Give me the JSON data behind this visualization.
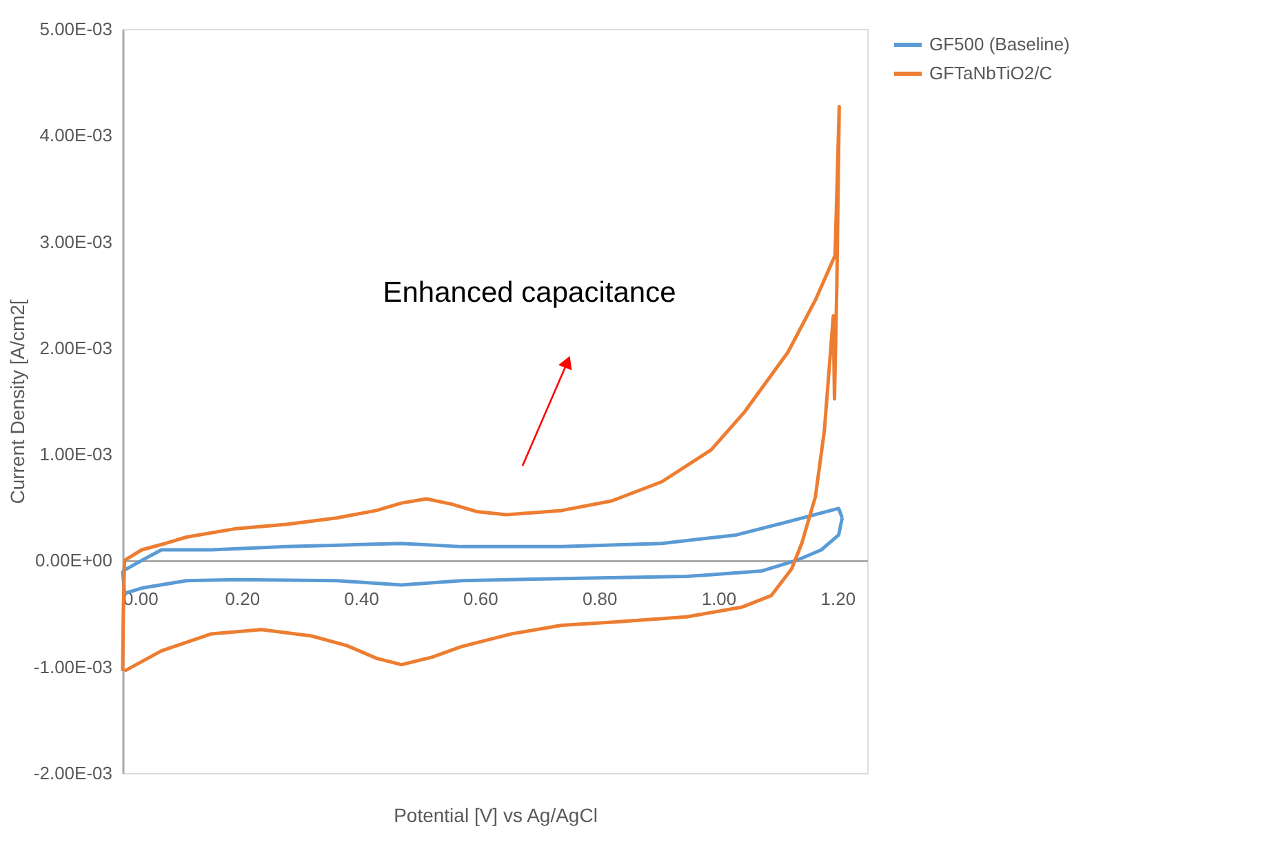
{
  "chart_data": {
    "type": "line",
    "xlabel": "Potential [V] vs Ag/AgCl",
    "ylabel": "Current Density [A/cm2[",
    "xlim": [
      0,
      1.25
    ],
    "ylim": [
      -0.002,
      0.005
    ],
    "xticks": [
      {
        "value": 0,
        "label": "0.00"
      },
      {
        "value": 0.2,
        "label": "0.20"
      },
      {
        "value": 0.4,
        "label": "0.40"
      },
      {
        "value": 0.6,
        "label": "0.60"
      },
      {
        "value": 0.8,
        "label": "0.80"
      },
      {
        "value": 1.0,
        "label": "1.00"
      },
      {
        "value": 1.2,
        "label": "1.20"
      }
    ],
    "yticks": [
      {
        "value": -0.002,
        "label": "-2.00E-03"
      },
      {
        "value": -0.001,
        "label": "-1.00E-03"
      },
      {
        "value": 0,
        "label": "0.00E+00"
      },
      {
        "value": 0.001,
        "label": "1.00E-03"
      },
      {
        "value": 0.002,
        "label": "2.00E-03"
      },
      {
        "value": 0.003,
        "label": "3.00E-03"
      },
      {
        "value": 0.004,
        "label": "4.00E-03"
      },
      {
        "value": 0.005,
        "label": "5.00E-03"
      }
    ],
    "grid": false,
    "legend": "right",
    "marker": "none",
    "line_style": "solid",
    "annotations": [
      "Enhanced capacitance"
    ],
    "series": [
      {
        "name": "GF500 (Baseline)",
        "color": "#5b9bd5",
        "x": [
          0,
          0.032,
          0.065,
          0.149,
          0.275,
          0.401,
          0.468,
          0.569,
          0.737,
          0.905,
          1.03,
          1.114,
          1.202,
          1.208
        ],
        "values": [
          -0.0001,
          0,
          0.0001,
          0.0001,
          0.00013,
          0.00015,
          0.00016,
          0.00013,
          0.00013,
          0.00016,
          0.00024,
          0.00036,
          0.00049,
          0.0004
        ]
      },
      {
        "color": "#5b9bd5",
        "x": [
          1.208,
          1.202,
          1.173,
          1.131,
          1.072,
          0.947,
          0.737,
          0.569,
          0.468,
          0.359,
          0.191,
          0.107,
          0.032,
          0.003,
          0
        ],
        "values": [
          0.0004,
          0.00024,
          0.0001,
          0,
          -0.0001,
          -0.00015,
          -0.00017,
          -0.00019,
          -0.00023,
          -0.00019,
          -0.00018,
          -0.00019,
          -0.00026,
          -0.00031,
          -0.0001
        ]
      },
      {
        "name": "GFTaNbTiO2/C",
        "color": "#ed7d31",
        "x": [
          0,
          0.001,
          0.003,
          0.032,
          0.065,
          0.107,
          0.191,
          0.275,
          0.359,
          0.426,
          0.468,
          0.51,
          0.552,
          0.594,
          0.644,
          0.737,
          0.821,
          0.905,
          0.988,
          1.043,
          1.117,
          1.163,
          1.196,
          1.203,
          1.199,
          1.195,
          1.193,
          1.178,
          1.163,
          1.14,
          1.123,
          1.089,
          1.039,
          0.947,
          0.821,
          0.737,
          0.653,
          0.569,
          0.519,
          0.468,
          0.426,
          0.376,
          0.317,
          0.233,
          0.149,
          0.065,
          0.003
        ],
        "values": [
          -0.00104,
          -0.0005,
          0,
          0.0001,
          0.00015,
          0.00022,
          0.0003,
          0.00034,
          0.0004,
          0.00047,
          0.00054,
          0.00058,
          0.00053,
          0.00046,
          0.00043,
          0.00047,
          0.00056,
          0.00074,
          0.00104,
          0.00139,
          0.00196,
          0.00245,
          0.00287,
          0.00427,
          0.0026,
          0.00152,
          0.0023,
          0.00122,
          0.0006,
          0.00016,
          -8e-05,
          -0.00033,
          -0.00044,
          -0.00053,
          -0.00058,
          -0.00061,
          -0.00069,
          -0.00081,
          -0.00091,
          -0.00098,
          -0.00092,
          -0.0008,
          -0.00071,
          -0.00065,
          -0.00069,
          -0.00085,
          -0.00104
        ]
      }
    ]
  }
}
